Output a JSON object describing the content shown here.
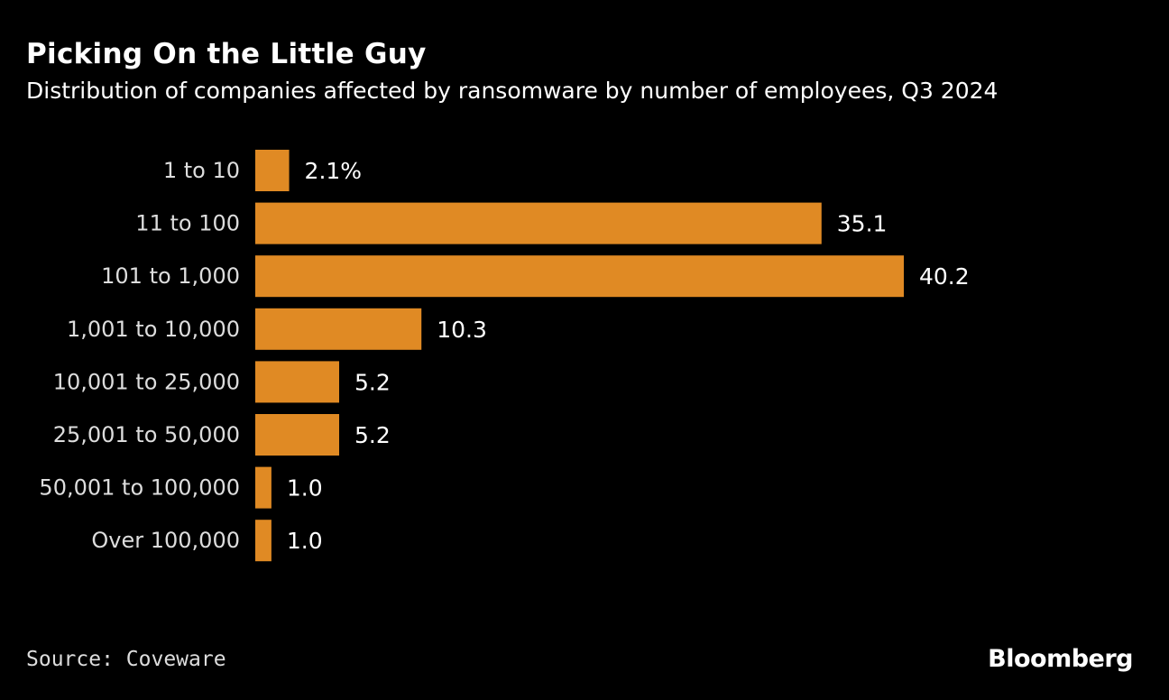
{
  "chart_data": {
    "type": "bar",
    "orientation": "horizontal",
    "title": "Picking On the Little Guy",
    "subtitle": "Distribution of companies affected by ransomware by number of employees, Q3 2024",
    "categories": [
      "1 to 10",
      "11 to 100",
      "101 to 1,000",
      "1,001 to 10,000",
      "10,001 to 25,000",
      "25,001 to 50,000",
      "50,001 to 100,000",
      "Over 100,000"
    ],
    "values": [
      2.1,
      35.1,
      40.2,
      10.3,
      5.2,
      5.2,
      1.0,
      1.0
    ],
    "data_labels": [
      "2.1%",
      "35.1",
      "40.2",
      "10.3",
      "5.2",
      "5.2",
      "1.0",
      "1.0"
    ],
    "unit": "%",
    "xlim": [
      0,
      40.2
    ],
    "grid": false,
    "bar_color": "#E08A24",
    "background": "#000000"
  },
  "footer": {
    "source": "Source: Coveware",
    "brand": "Bloomberg"
  }
}
